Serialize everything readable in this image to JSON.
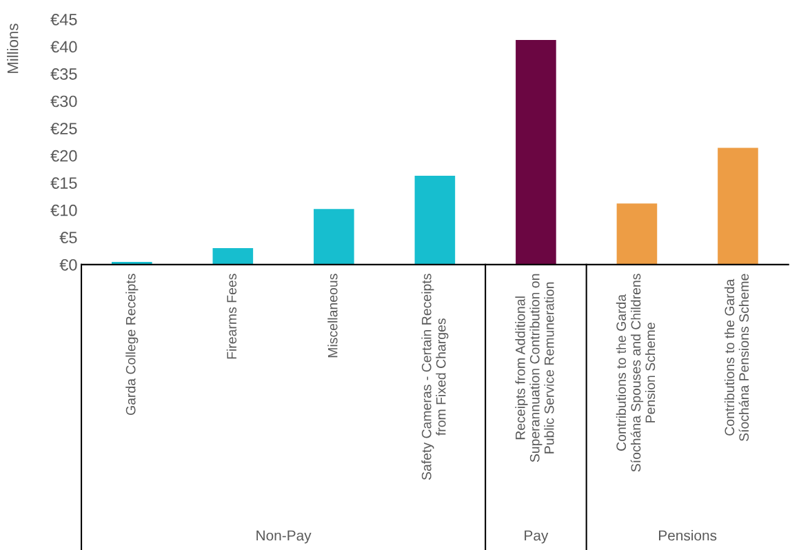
{
  "chart_data": {
    "type": "bar",
    "ylabel": "Millions",
    "categories": [
      "Garda College Receipts",
      "Firearms Fees",
      "Miscellaneous",
      "Safety Cameras - Certain Receipts\nfrom Fixed Charges",
      "Receipts from Additional\nSuperannuation Contribution on\nPublic Service Remuneration",
      "Contributions to the Garda\nSíochána Spouses and Childrens\nPension Scheme",
      "Contributions to the Garda\nSíochána Pensions Scheme"
    ],
    "values": [
      0.5,
      3.0,
      10.2,
      16.3,
      41.2,
      11.2,
      21.4
    ],
    "colors": [
      "#17becf",
      "#17becf",
      "#17becf",
      "#17becf",
      "#6b0642",
      "#ed9d45",
      "#ed9d45"
    ],
    "annotations": [
      "Non-Pay",
      "Pay",
      "Pensions"
    ],
    "ylim": [
      0,
      45
    ],
    "yticks": [
      {
        "value": 0,
        "label": "€0"
      },
      {
        "value": 5,
        "label": "€5"
      },
      {
        "value": 10,
        "label": "€10"
      },
      {
        "value": 15,
        "label": "€15"
      },
      {
        "value": 20,
        "label": "€20"
      },
      {
        "value": 25,
        "label": "€25"
      },
      {
        "value": 30,
        "label": "€30"
      },
      {
        "value": 35,
        "label": "€35"
      },
      {
        "value": 40,
        "label": "€40"
      },
      {
        "value": 45,
        "label": "€45"
      }
    ],
    "grid": false,
    "legend": false
  }
}
